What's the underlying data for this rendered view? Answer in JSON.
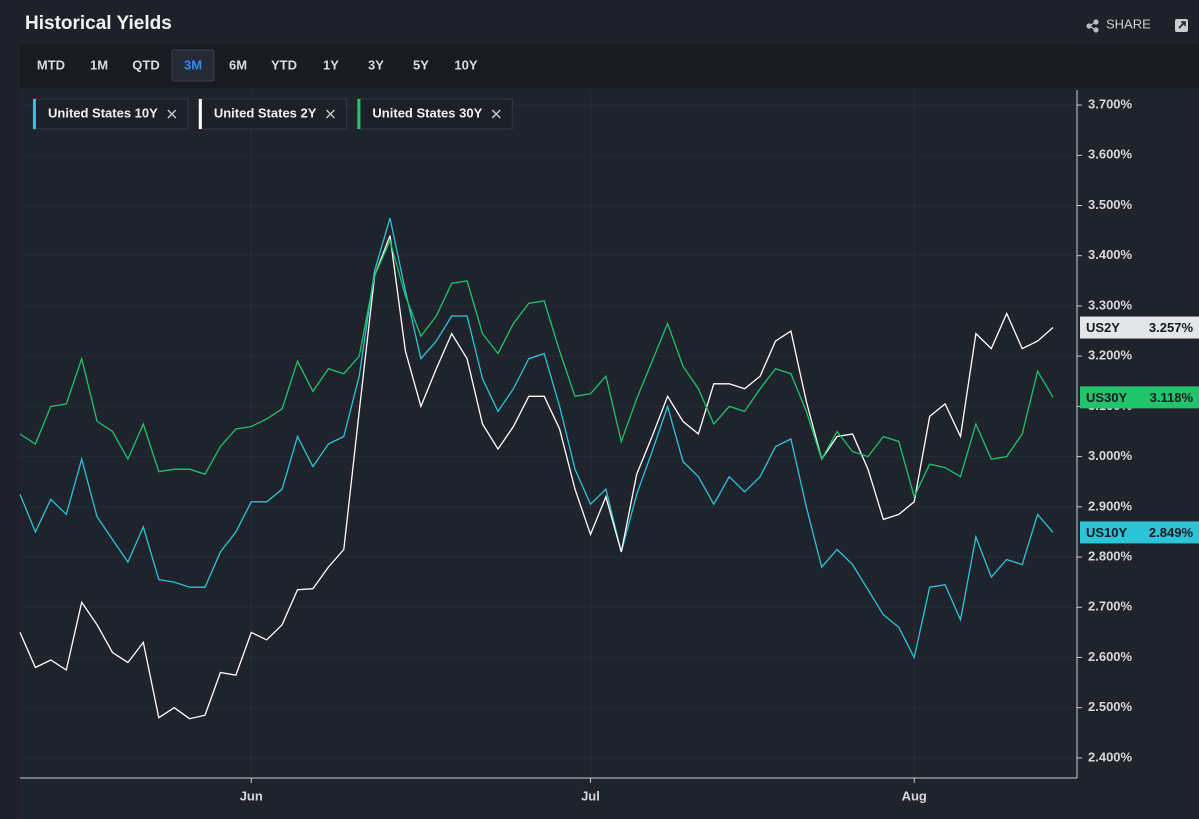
{
  "header": {
    "title": "Historical Yields",
    "share": "SHARE"
  },
  "ranges": [
    "MTD",
    "1M",
    "QTD",
    "3M",
    "6M",
    "YTD",
    "1Y",
    "3Y",
    "5Y",
    "10Y"
  ],
  "selected_range": "3M",
  "chart_data": {
    "type": "line",
    "categories": [
      null,
      null,
      null,
      null,
      null,
      null,
      null,
      null,
      null,
      null,
      null,
      null,
      null,
      null,
      null,
      "Jun",
      null,
      null,
      null,
      null,
      null,
      null,
      null,
      null,
      null,
      null,
      null,
      null,
      null,
      null,
      null,
      null,
      null,
      null,
      null,
      null,
      null,
      "Jul",
      null,
      null,
      null,
      null,
      null,
      null,
      null,
      null,
      null,
      null,
      null,
      null,
      null,
      null,
      null,
      null,
      null,
      null,
      null,
      null,
      "Aug",
      null,
      null,
      null,
      null,
      null,
      null,
      null,
      null,
      null
    ],
    "series": [
      {
        "name": "United States 10Y",
        "tag": "US10Y",
        "color": "#2bc4d8",
        "values": [
          2.925,
          2.85,
          2.915,
          2.885,
          2.995,
          2.88,
          2.835,
          2.79,
          2.86,
          2.755,
          2.75,
          2.74,
          2.74,
          2.81,
          2.85,
          2.91,
          2.91,
          2.935,
          3.04,
          2.98,
          3.025,
          3.04,
          3.16,
          3.37,
          3.475,
          3.33,
          3.195,
          3.23,
          3.28,
          3.28,
          3.155,
          3.09,
          3.135,
          3.195,
          3.205,
          3.1,
          2.975,
          2.905,
          2.935,
          2.81,
          2.925,
          3.01,
          3.1,
          2.99,
          2.96,
          2.905,
          2.96,
          2.93,
          2.96,
          3.02,
          3.035,
          2.9,
          2.78,
          2.815,
          2.785,
          2.735,
          2.685,
          2.66,
          2.6,
          2.74,
          2.745,
          2.675,
          2.84,
          2.76,
          2.795,
          2.785,
          2.885,
          2.849
        ],
        "value_labels": [
          null,
          null,
          null,
          null,
          null,
          null,
          null,
          null,
          null,
          null,
          null,
          null,
          null,
          null,
          null,
          null,
          null,
          null,
          null,
          null,
          null,
          null,
          null,
          null,
          null,
          null,
          null,
          null,
          null,
          null,
          null,
          null,
          null,
          null,
          null,
          null,
          null,
          null,
          null,
          null,
          null,
          null,
          null,
          null,
          null,
          null,
          null,
          null,
          null,
          null,
          null,
          null,
          null,
          null,
          null,
          null,
          null,
          null,
          null,
          null,
          null,
          null,
          null,
          null,
          null,
          null,
          null,
          "2.849%"
        ]
      },
      {
        "name": "United States 2Y",
        "tag": "US2Y",
        "color": "#ffffff",
        "values": [
          2.65,
          2.58,
          2.595,
          2.575,
          2.71,
          2.665,
          2.61,
          2.59,
          2.63,
          2.48,
          2.5,
          2.478,
          2.485,
          2.57,
          2.565,
          2.65,
          2.635,
          2.665,
          2.735,
          2.737,
          2.78,
          2.815,
          3.09,
          3.36,
          3.44,
          3.21,
          3.1,
          3.175,
          3.245,
          3.195,
          3.065,
          3.015,
          3.06,
          3.12,
          3.12,
          3.055,
          2.935,
          2.845,
          2.92,
          2.81,
          2.965,
          3.04,
          3.12,
          3.07,
          3.045,
          3.145,
          3.145,
          3.135,
          3.16,
          3.23,
          3.25,
          3.11,
          2.995,
          3.04,
          3.045,
          2.975,
          2.875,
          2.885,
          2.91,
          3.08,
          3.105,
          3.04,
          3.245,
          3.215,
          3.285,
          3.215,
          3.23,
          3.257
        ],
        "value_labels": [
          null,
          null,
          null,
          null,
          null,
          null,
          null,
          null,
          null,
          null,
          null,
          null,
          null,
          null,
          null,
          null,
          null,
          null,
          null,
          null,
          null,
          null,
          null,
          null,
          null,
          null,
          null,
          null,
          null,
          null,
          null,
          null,
          null,
          null,
          null,
          null,
          null,
          null,
          null,
          null,
          null,
          null,
          null,
          null,
          null,
          null,
          null,
          null,
          null,
          null,
          null,
          null,
          null,
          null,
          null,
          null,
          null,
          null,
          null,
          null,
          null,
          null,
          null,
          null,
          null,
          null,
          null,
          "3.257%"
        ]
      },
      {
        "name": "United States 30Y",
        "tag": "US30Y",
        "color": "#1fc46b",
        "values": [
          3.045,
          3.025,
          3.1,
          3.105,
          3.195,
          3.07,
          3.05,
          2.995,
          3.065,
          2.97,
          2.975,
          2.975,
          2.965,
          3.02,
          3.055,
          3.06,
          3.075,
          3.095,
          3.19,
          3.13,
          3.175,
          3.165,
          3.2,
          3.36,
          3.43,
          3.32,
          3.24,
          3.28,
          3.345,
          3.35,
          3.245,
          3.205,
          3.265,
          3.305,
          3.31,
          3.21,
          3.12,
          3.125,
          3.16,
          3.03,
          3.115,
          3.19,
          3.265,
          3.18,
          3.135,
          3.065,
          3.1,
          3.09,
          3.135,
          3.175,
          3.165,
          3.09,
          2.995,
          3.05,
          3.01,
          3.0,
          3.04,
          3.03,
          2.92,
          2.985,
          2.978,
          2.96,
          3.065,
          2.995,
          3.0,
          3.045,
          3.17,
          3.118
        ],
        "value_labels": [
          null,
          null,
          null,
          null,
          null,
          null,
          null,
          null,
          null,
          null,
          null,
          null,
          null,
          null,
          null,
          null,
          null,
          null,
          null,
          null,
          null,
          null,
          null,
          null,
          null,
          null,
          null,
          null,
          null,
          null,
          null,
          null,
          null,
          null,
          null,
          null,
          null,
          null,
          null,
          null,
          null,
          null,
          null,
          null,
          null,
          null,
          null,
          null,
          null,
          null,
          null,
          null,
          null,
          null,
          null,
          null,
          null,
          null,
          null,
          null,
          null,
          null,
          null,
          null,
          null,
          null,
          null,
          "3.118%"
        ]
      }
    ],
    "ylim": [
      2.36,
      3.73
    ],
    "yticks": [
      {
        "value": 2.4,
        "label": "2.400%"
      },
      {
        "value": 2.5,
        "label": "2.500%"
      },
      {
        "value": 2.6,
        "label": "2.600%"
      },
      {
        "value": 2.7,
        "label": "2.700%"
      },
      {
        "value": 2.8,
        "label": "2.800%"
      },
      {
        "value": 2.9,
        "label": "2.900%"
      },
      {
        "value": 3.0,
        "label": "3.000%"
      },
      {
        "value": 3.1,
        "label": "3.100%"
      },
      {
        "value": 3.2,
        "label": "3.200%"
      },
      {
        "value": 3.3,
        "label": "3.300%"
      },
      {
        "value": 3.4,
        "label": "3.400%"
      },
      {
        "value": 3.5,
        "label": "3.500%"
      },
      {
        "value": 3.6,
        "label": "3.600%"
      },
      {
        "value": 3.7,
        "label": "3.700%"
      }
    ],
    "grid": true
  }
}
